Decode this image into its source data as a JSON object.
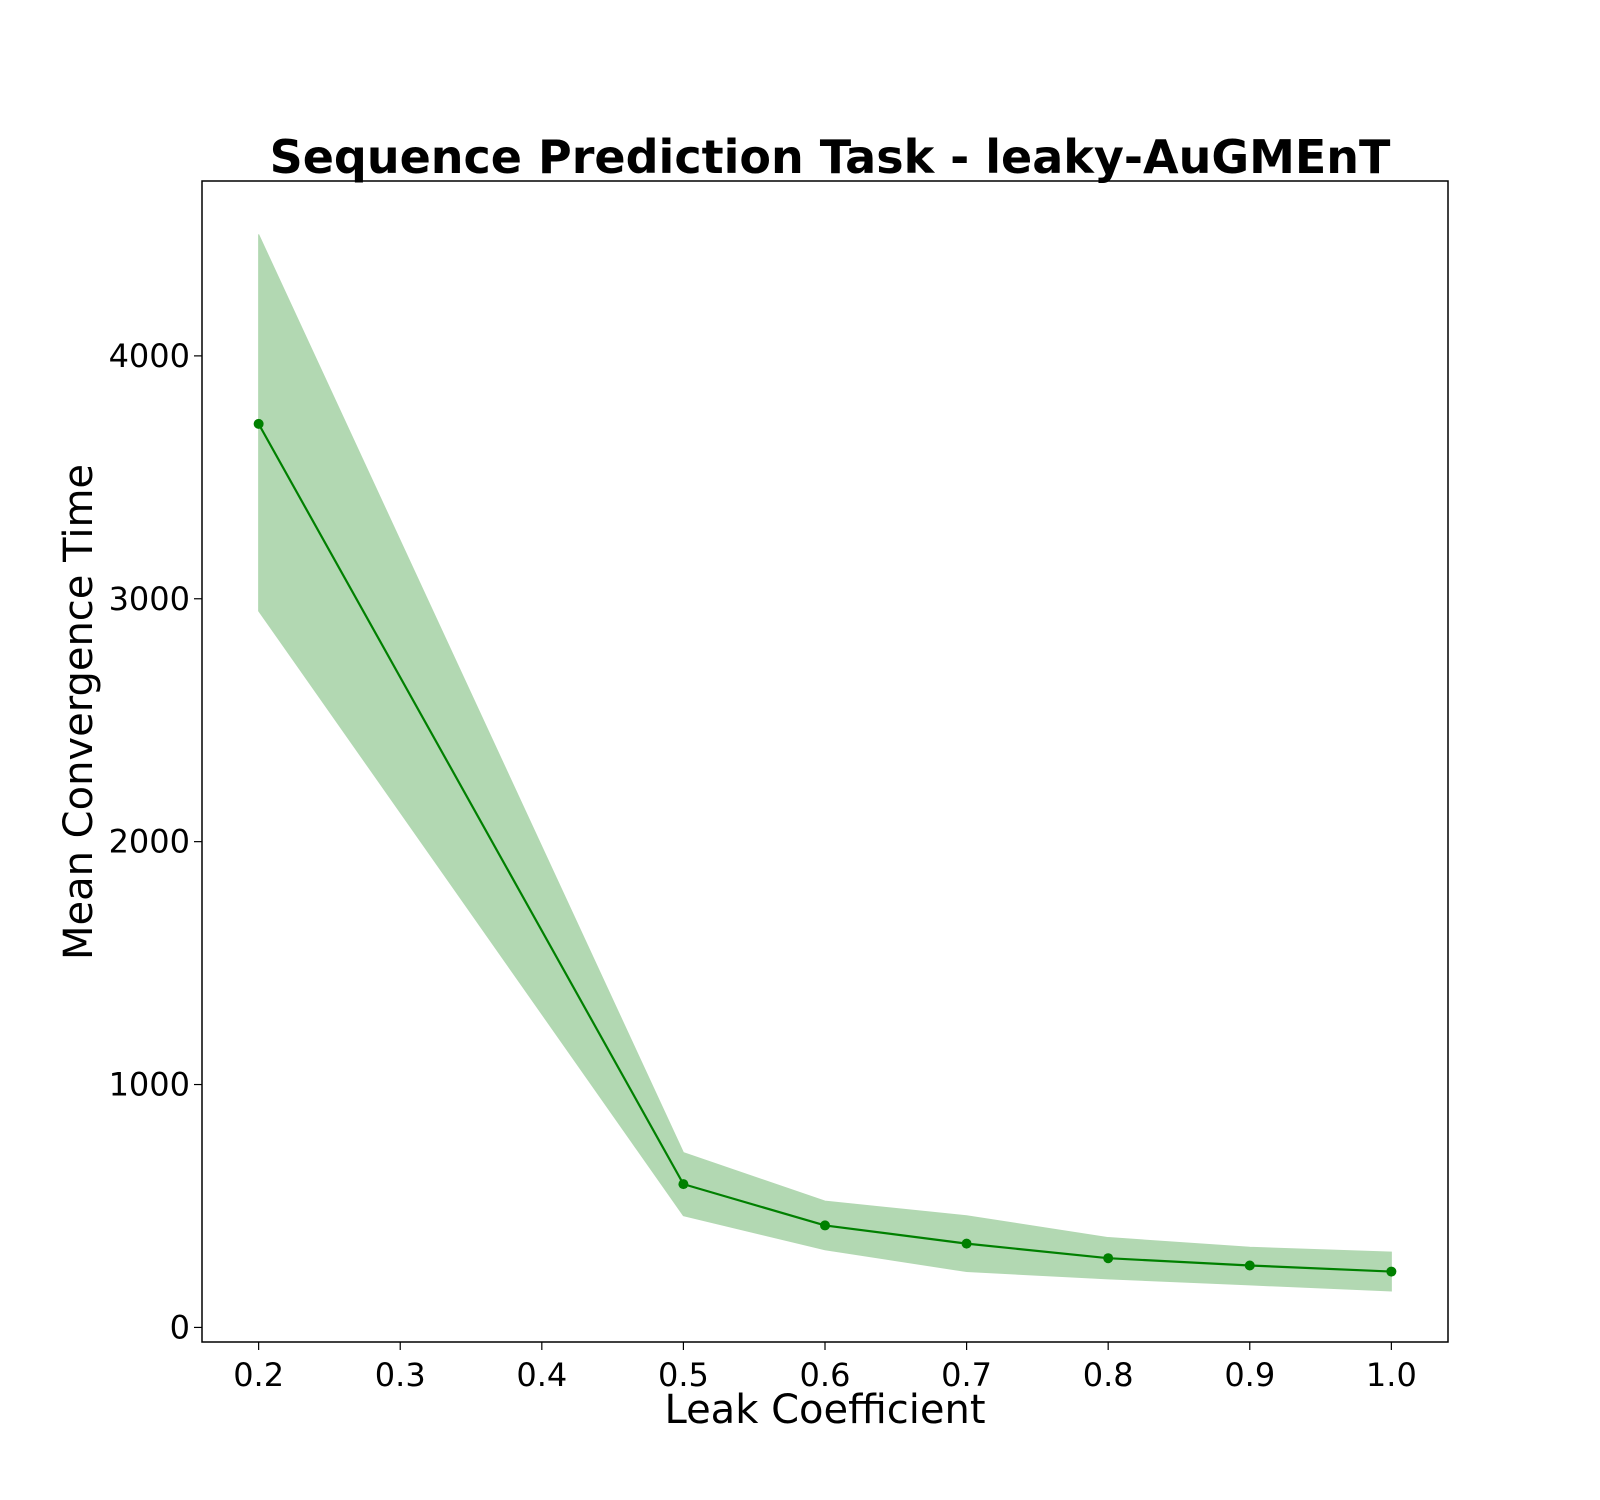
{
  "chart_data": {
    "type": "line",
    "title": "Sequence Prediction Task - leaky-AuGMEnT",
    "xlabel": "Leak Coefficient",
    "ylabel": "Mean Convergence Time",
    "xlim": [
      0.16,
      1.04
    ],
    "ylim": [
      -60,
      4720
    ],
    "xticks": [
      0.2,
      0.3,
      0.4,
      0.5,
      0.6,
      0.7,
      0.8,
      0.9,
      1.0
    ],
    "xtick_labels": [
      "0.2",
      "0.3",
      "0.4",
      "0.5",
      "0.6",
      "0.7",
      "0.8",
      "0.9",
      "1.0"
    ],
    "yticks": [
      0,
      1000,
      2000,
      3000,
      4000
    ],
    "ytick_labels": [
      "0",
      "1000",
      "2000",
      "3000",
      "4000"
    ],
    "grid": false,
    "series": [
      {
        "x": [
          0.2,
          0.5,
          0.6,
          0.7,
          0.8,
          0.9,
          1.0
        ],
        "y": [
          3720,
          590,
          420,
          345,
          285,
          255,
          230
        ],
        "lower": [
          2950,
          460,
          320,
          230,
          200,
          175,
          150
        ],
        "upper": [
          4500,
          720,
          520,
          460,
          370,
          330,
          310
        ],
        "color": "#008000",
        "band_color": "#b2d8b2"
      }
    ]
  }
}
